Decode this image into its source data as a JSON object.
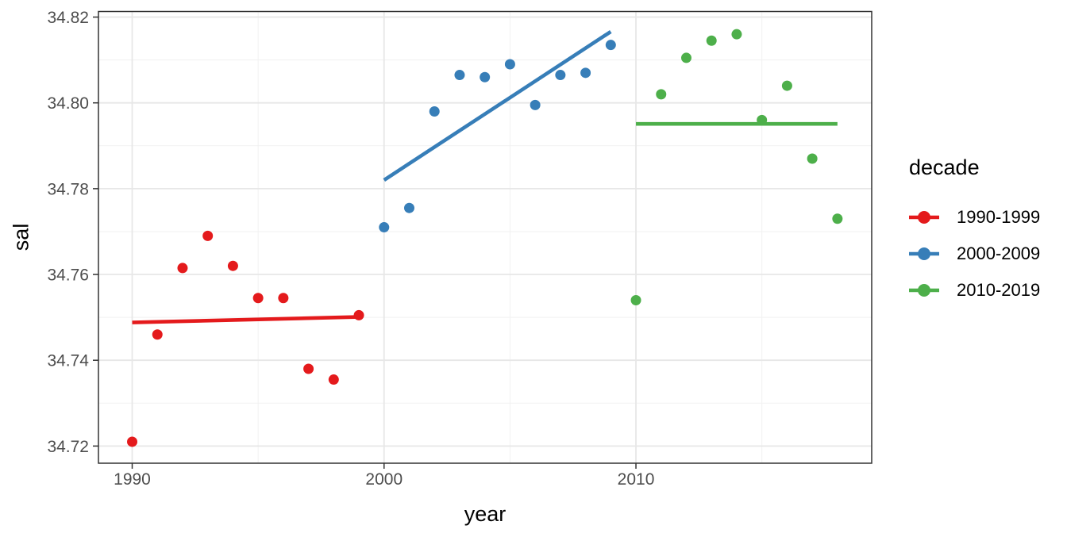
{
  "chart_data": {
    "type": "scatter",
    "title": "",
    "xlabel": "year",
    "ylabel": "sal",
    "xlim": [
      1988.66,
      2019.36
    ],
    "ylim": [
      34.716,
      34.8213
    ],
    "grid": "major_and_minor",
    "x_ticks": [
      {
        "value": 1990,
        "label": "1990"
      },
      {
        "value": 2000,
        "label": "2000"
      },
      {
        "value": 2010,
        "label": "2010"
      }
    ],
    "x_minor_gridlines": [
      1995,
      2005,
      2015
    ],
    "y_ticks": [
      {
        "value": 34.72,
        "label": "34.72"
      },
      {
        "value": 34.74,
        "label": "34.74"
      },
      {
        "value": 34.76,
        "label": "34.76"
      },
      {
        "value": 34.78,
        "label": "34.78"
      },
      {
        "value": 34.8,
        "label": "34.80"
      },
      {
        "value": 34.82,
        "label": "34.82"
      }
    ],
    "y_minor_gridlines": [
      34.73,
      34.75,
      34.77,
      34.79,
      34.81
    ],
    "legend": {
      "title": "decade",
      "position": "right"
    },
    "series": [
      {
        "name": "1990-1999",
        "color": "#E41A1C",
        "points": [
          [
            1990,
            34.721
          ],
          [
            1991,
            34.746
          ],
          [
            1992,
            34.7615
          ],
          [
            1993,
            34.769
          ],
          [
            1994,
            34.762
          ],
          [
            1995,
            34.7545
          ],
          [
            1996,
            34.7545
          ],
          [
            1997,
            34.738
          ],
          [
            1998,
            34.7355
          ],
          [
            1999,
            34.7505
          ]
        ],
        "trend": [
          [
            1990,
            34.7488
          ],
          [
            1999,
            34.7501
          ]
        ]
      },
      {
        "name": "2000-2009",
        "color": "#377EB8",
        "points": [
          [
            2000,
            34.771
          ],
          [
            2001,
            34.7755
          ],
          [
            2002,
            34.798
          ],
          [
            2003,
            34.8065
          ],
          [
            2004,
            34.806
          ],
          [
            2005,
            34.809
          ],
          [
            2006,
            34.7995
          ],
          [
            2007,
            34.8065
          ],
          [
            2008,
            34.807
          ],
          [
            2009,
            34.8135
          ]
        ],
        "trend": [
          [
            2000,
            34.782
          ],
          [
            2009,
            34.8166
          ]
        ]
      },
      {
        "name": "2010-2019",
        "color": "#4DAF4A",
        "points": [
          [
            2010,
            34.754
          ],
          [
            2011,
            34.802
          ],
          [
            2012,
            34.8105
          ],
          [
            2013,
            34.8145
          ],
          [
            2014,
            34.816
          ],
          [
            2015,
            34.796
          ],
          [
            2016,
            34.804
          ],
          [
            2017,
            34.787
          ],
          [
            2018,
            34.773
          ]
        ],
        "trend": [
          [
            2010,
            34.7951
          ],
          [
            2018,
            34.7951
          ]
        ]
      }
    ],
    "style": {
      "panel_background": "#ffffff",
      "panel_border_color": "#333333",
      "grid_major_color": "#e7e7e7",
      "grid_minor_color": "#f1f1f1",
      "tick_color": "#333333",
      "tick_label_color": "#4d4d4d",
      "point_radius": 6.5,
      "trend_width": 4.6
    }
  }
}
